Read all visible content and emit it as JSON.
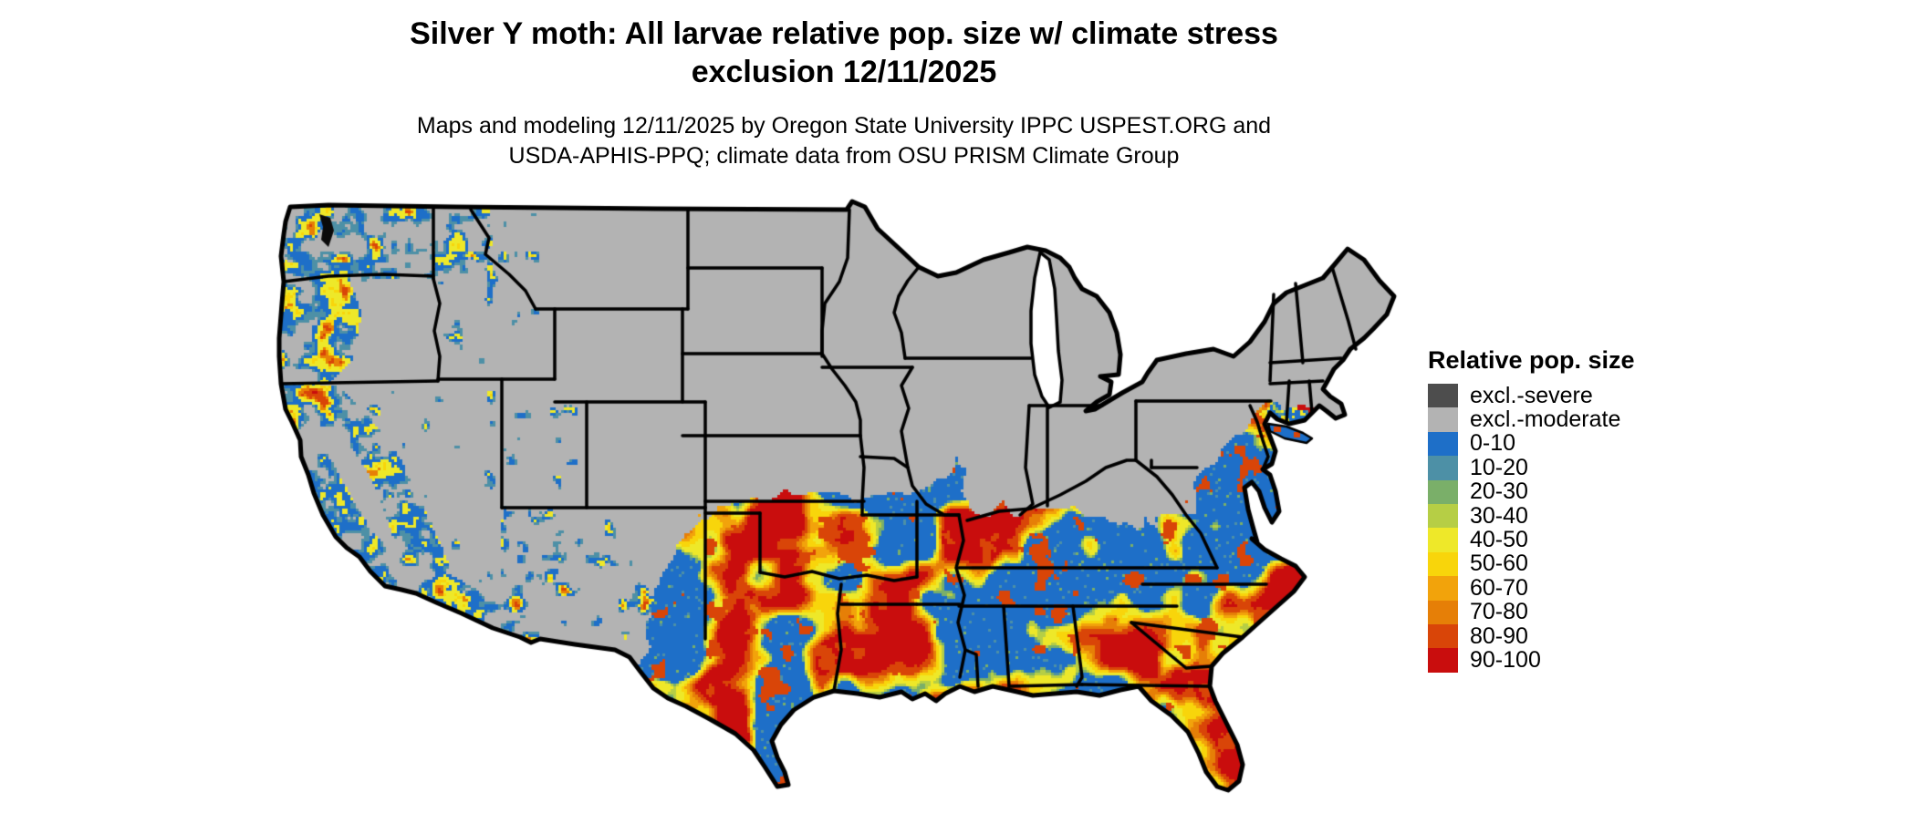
{
  "header": {
    "title_lines": [
      "Silver Y moth: All larvae relative pop. size w/ climate stress",
      "exclusion 12/11/2025"
    ],
    "subtitle_lines": [
      "Maps and modeling 12/11/2025 by Oregon State University IPPC USPEST.ORG and",
      "USDA-APHIS-PPQ; climate data from OSU PRISM Climate Group"
    ]
  },
  "legend": {
    "title": "Relative pop. size",
    "items": [
      {
        "label": "excl.-severe",
        "color": "#4D4D4D"
      },
      {
        "label": "excl.-moderate",
        "color": "#B3B3B3"
      },
      {
        "label": "0-10",
        "color": "#1E6FC8"
      },
      {
        "label": "10-20",
        "color": "#4D90A6"
      },
      {
        "label": "20-30",
        "color": "#7AAF69"
      },
      {
        "label": "30-40",
        "color": "#B6CE45"
      },
      {
        "label": "40-50",
        "color": "#EEE829"
      },
      {
        "label": "50-60",
        "color": "#F8D50B"
      },
      {
        "label": "60-70",
        "color": "#F2A30B"
      },
      {
        "label": "70-80",
        "color": "#E67F07"
      },
      {
        "label": "80-90",
        "color": "#D94508"
      },
      {
        "label": "90-100",
        "color": "#C90D0D"
      }
    ]
  },
  "map": {
    "background": "#FFFFFF",
    "border_color": "#000000",
    "water_color": "#FFFFFF",
    "coast_water_color": "#0A0A0A"
  }
}
